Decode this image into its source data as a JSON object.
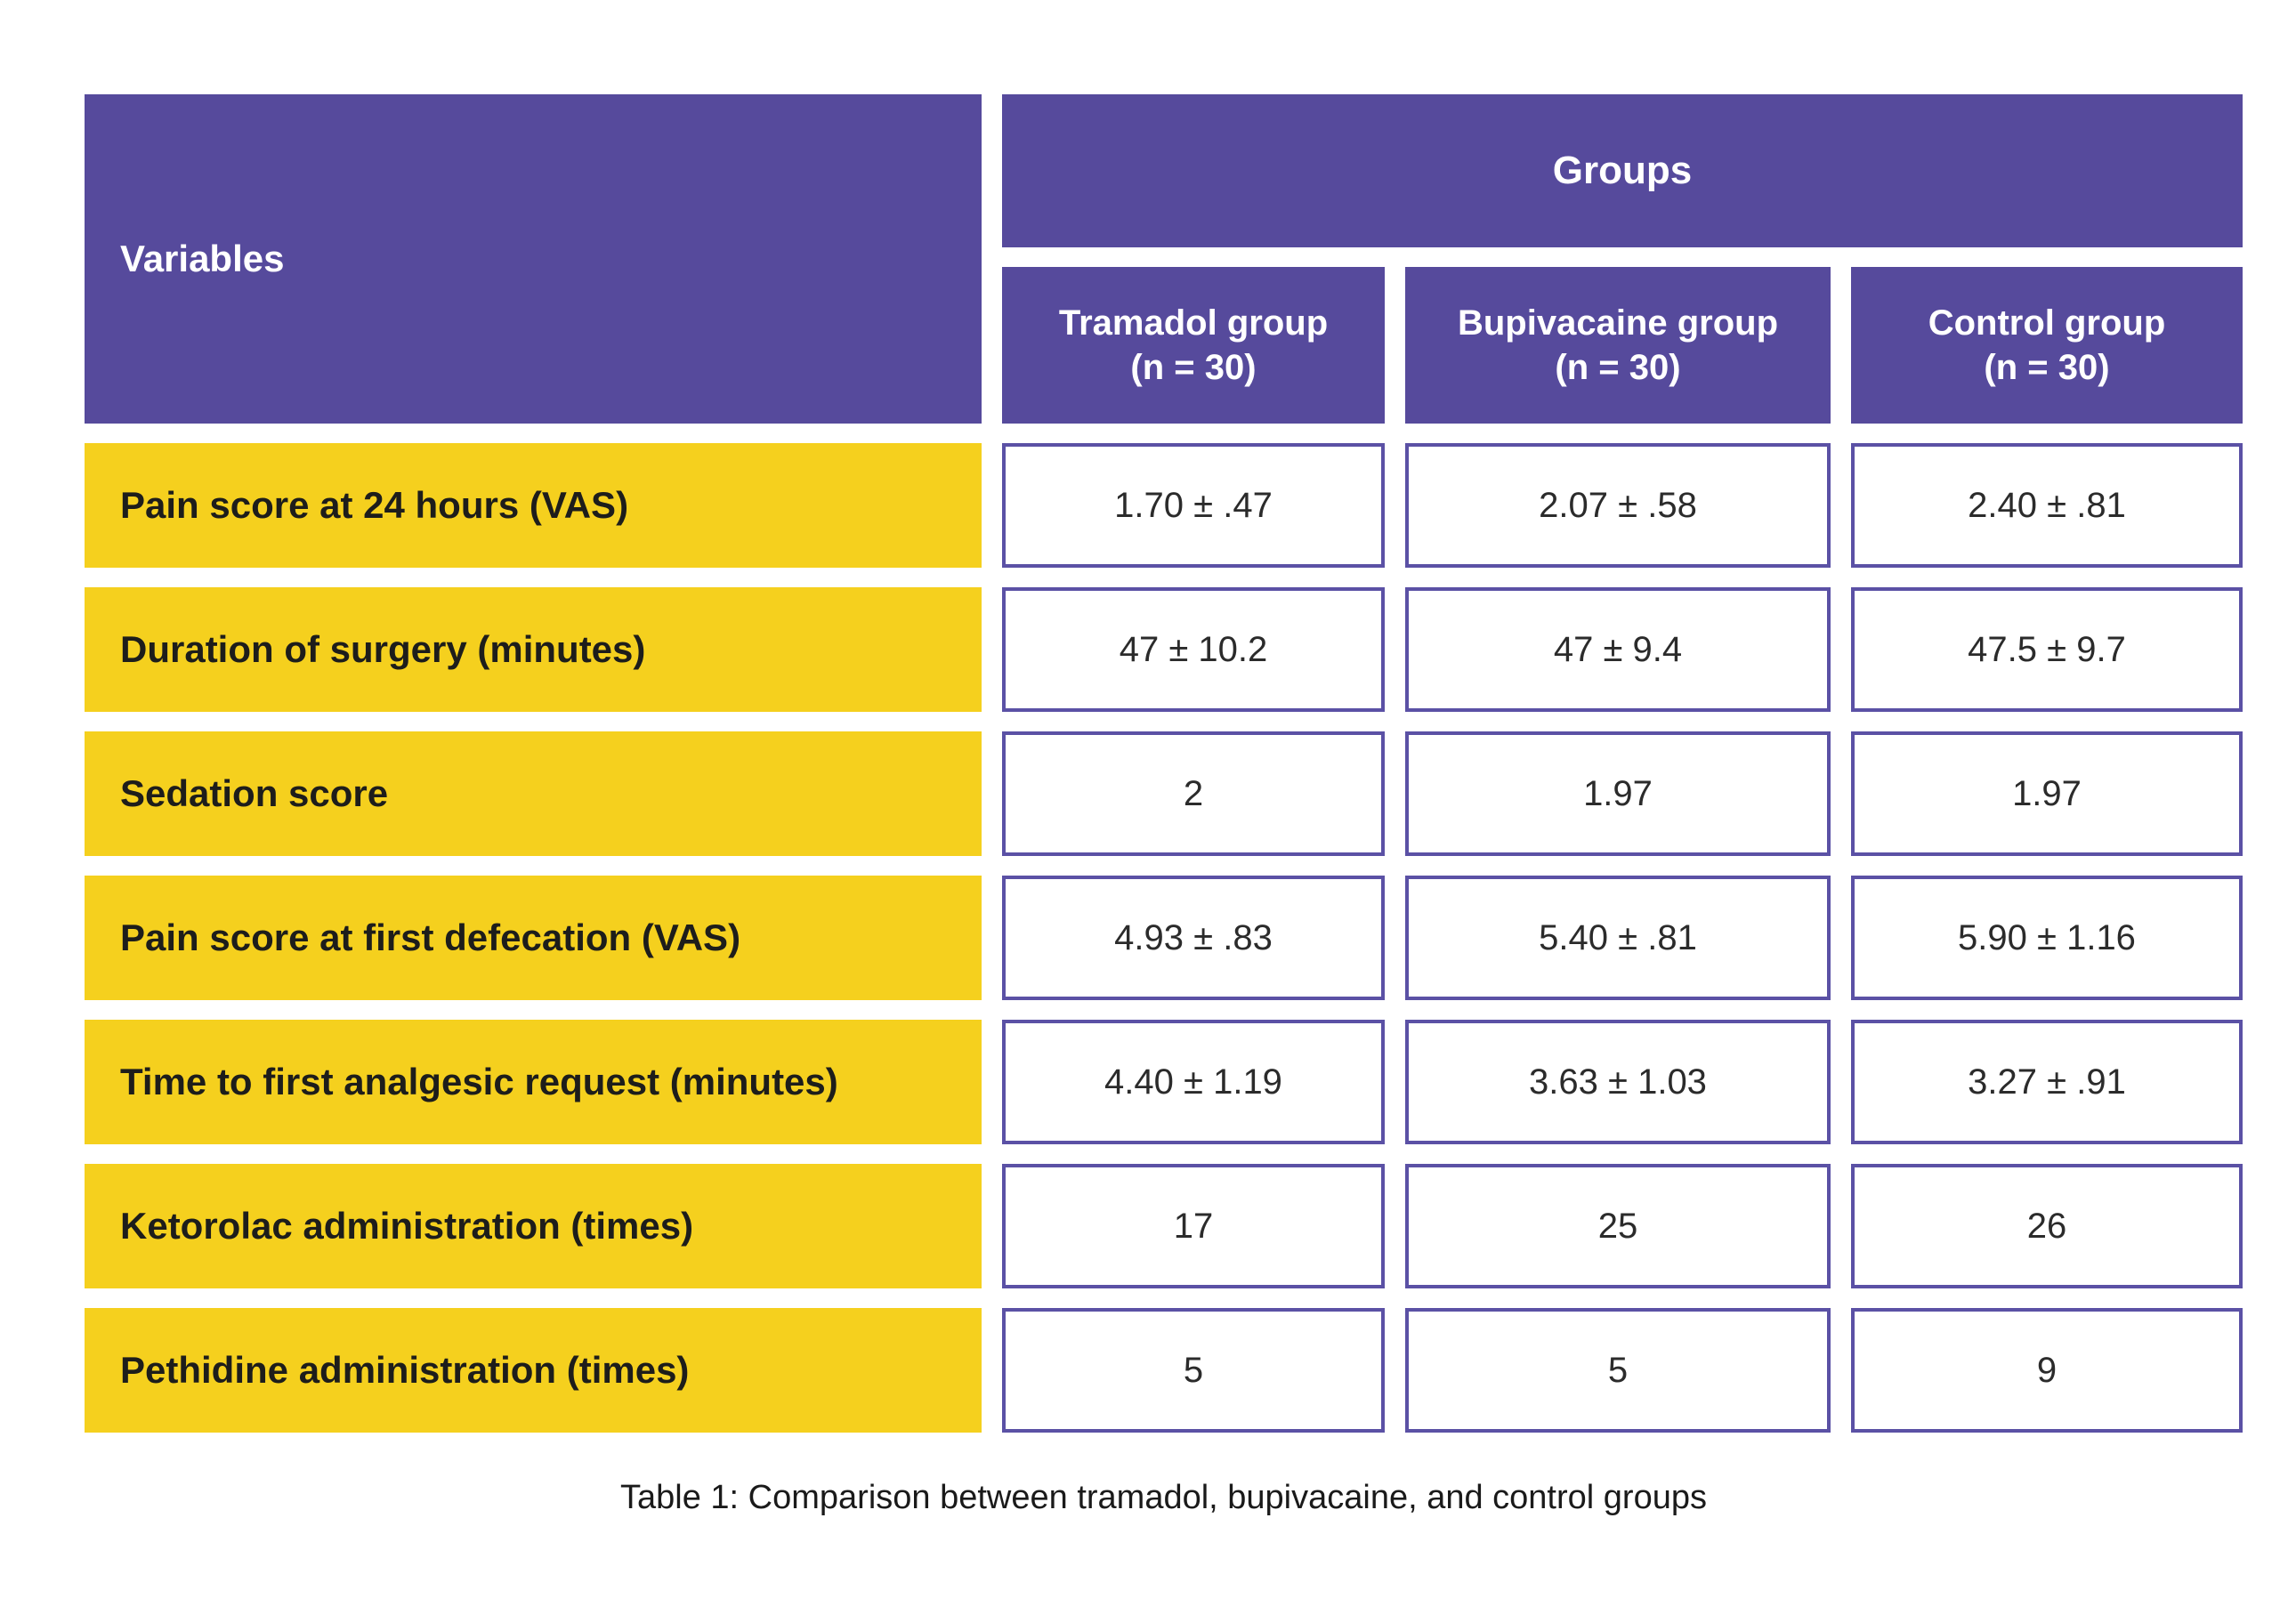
{
  "table": {
    "header": {
      "variables_label": "Variables",
      "groups_label": "Groups",
      "columns": [
        {
          "label": "Tramadol group",
          "n": "(n = 30)"
        },
        {
          "label": "Bupivacaine group",
          "n": "(n = 30)"
        },
        {
          "label": "Control group",
          "n": "(n = 30)"
        }
      ]
    },
    "rows": [
      {
        "label": "Pain score at 24 hours (VAS)",
        "values": [
          "1.70 ± .47",
          "2.07 ± .58",
          "2.40 ± .81"
        ]
      },
      {
        "label": "Duration of surgery (minutes)",
        "values": [
          "47 ± 10.2",
          "47 ± 9.4",
          "47.5 ± 9.7"
        ]
      },
      {
        "label": "Sedation score",
        "values": [
          "2",
          "1.97",
          "1.97"
        ]
      },
      {
        "label": "Pain score at first defecation (VAS)",
        "values": [
          "4.93 ± .83",
          "5.40 ± .81",
          "5.90 ± 1.16"
        ]
      },
      {
        "label": "Time to first analgesic request (minutes)",
        "values": [
          "4.40 ± 1.19",
          "3.63 ± 1.03",
          "3.27 ± .91"
        ]
      },
      {
        "label": "Ketorolac administration (times)",
        "values": [
          "17",
          "25",
          "26"
        ]
      },
      {
        "label": "Pethidine administration (times)",
        "values": [
          "5",
          "5",
          "9"
        ]
      }
    ],
    "caption": "Table 1: Comparison between tramadol, bupivacaine, and control groups"
  },
  "colors": {
    "header_purple": "#564a9c",
    "row_yellow": "#f5d01e",
    "value_box_border": "#5b51a5",
    "label_text": "#1d1d1b",
    "value_text": "#2b2b2b",
    "background": "#ffffff"
  }
}
